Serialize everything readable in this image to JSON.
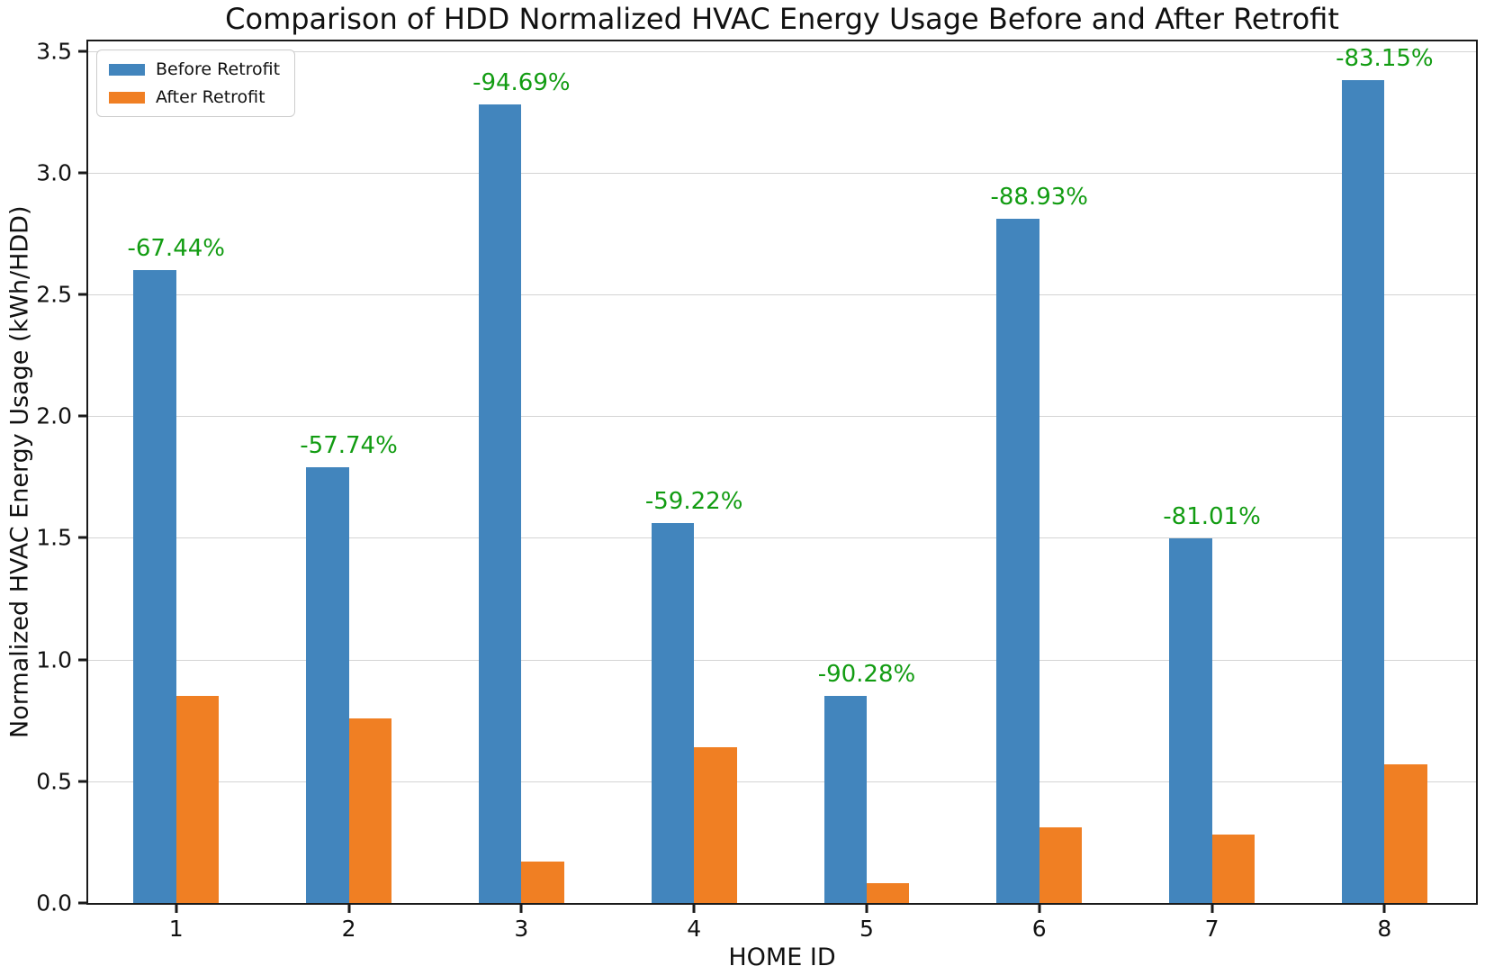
{
  "chart_data": {
    "type": "bar",
    "title": "Comparison of HDD Normalized HVAC Energy Usage Before and After Retrofit",
    "xlabel": "HOME ID",
    "ylabel": "Normalized HVAC Energy Usage (kWh/HDD)",
    "categories": [
      "1",
      "2",
      "3",
      "4",
      "5",
      "6",
      "7",
      "8"
    ],
    "series": [
      {
        "name": "Before Retrofit",
        "color": "#4285bd",
        "values": [
          2.6,
          1.79,
          3.28,
          1.56,
          0.85,
          2.81,
          1.5,
          3.38
        ]
      },
      {
        "name": "After Retrofit",
        "color": "#f07f23",
        "values": [
          0.85,
          0.76,
          0.17,
          0.64,
          0.08,
          0.31,
          0.28,
          0.57
        ]
      }
    ],
    "annotations": {
      "color": "#129c12",
      "labels": [
        "-67.44%",
        "-57.74%",
        "-94.69%",
        "-59.22%",
        "-90.28%",
        "-88.93%",
        "-81.01%",
        "-83.15%"
      ]
    },
    "yticks": [
      "0.0",
      "0.5",
      "1.0",
      "1.5",
      "2.0",
      "2.5",
      "3.0",
      "3.5"
    ],
    "ytick_values": [
      0.0,
      0.5,
      1.0,
      1.5,
      2.0,
      2.5,
      3.0,
      3.5
    ],
    "ylim": [
      0,
      3.54
    ],
    "grid": "horizontal",
    "legend_position": "upper-left"
  }
}
